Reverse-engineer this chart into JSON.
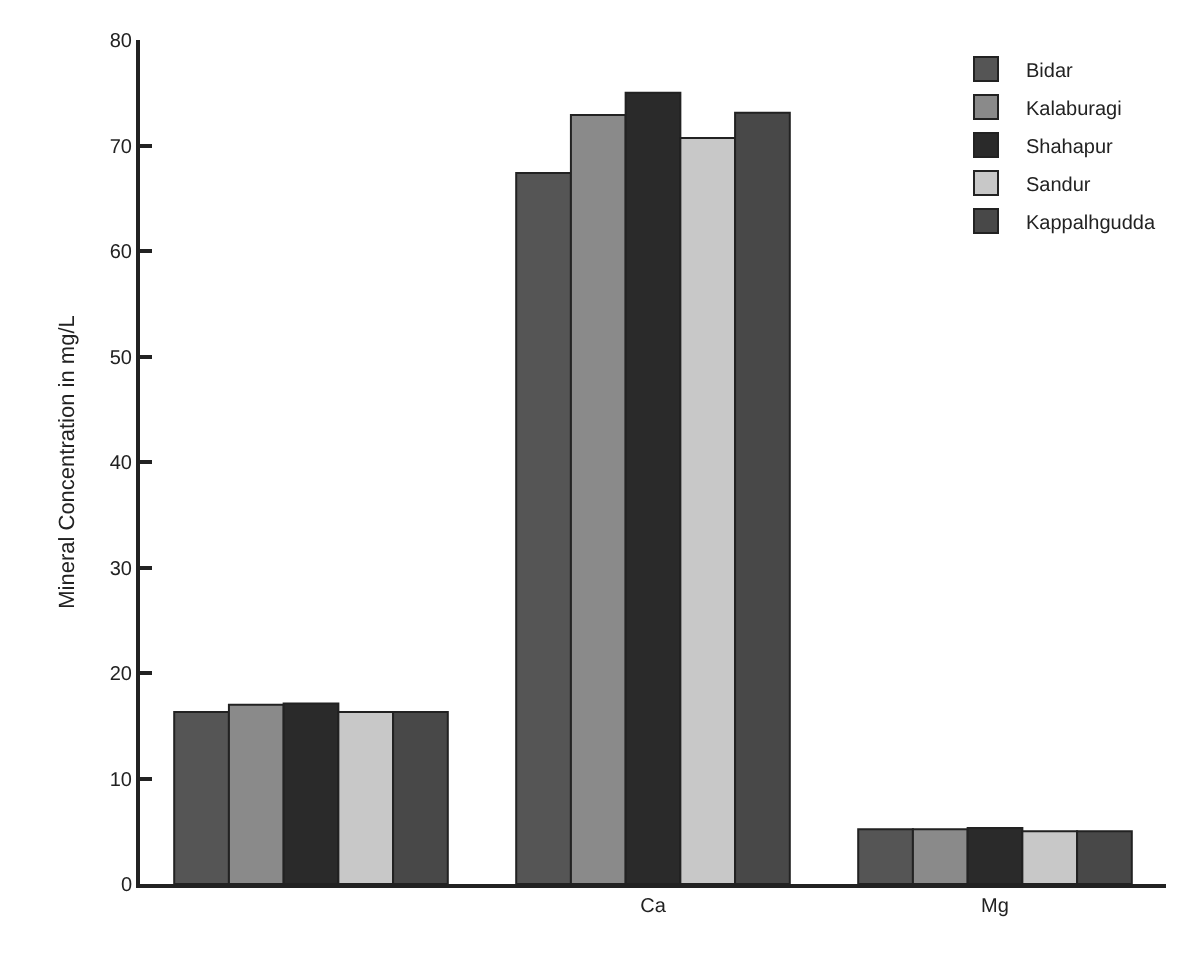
{
  "chart_data": {
    "type": "bar",
    "ylabel": "Mineral Concentration in mg/L",
    "categories": [
      null,
      "Ca",
      "Mg"
    ],
    "series": [
      {
        "name": "Bidar",
        "color": "#555555",
        "values": [
          16.3,
          67.4,
          5.2
        ]
      },
      {
        "name": "Kalaburagi",
        "color": "#8a8a8a",
        "values": [
          17.0,
          72.9,
          5.2
        ]
      },
      {
        "name": "Shahapur",
        "color": "#2a2a2a",
        "values": [
          17.1,
          75.0,
          5.3
        ]
      },
      {
        "name": "Sandur",
        "color": "#c8c8c8",
        "values": [
          16.3,
          70.7,
          5.0
        ]
      },
      {
        "name": "Kappalhgudda",
        "color": "#484848",
        "values": [
          16.3,
          73.1,
          5.0
        ]
      }
    ],
    "ylim": [
      0,
      80
    ],
    "yticks": [
      0,
      10,
      20,
      30,
      40,
      50,
      60,
      70,
      80
    ],
    "grid": false,
    "legend": "top right"
  }
}
